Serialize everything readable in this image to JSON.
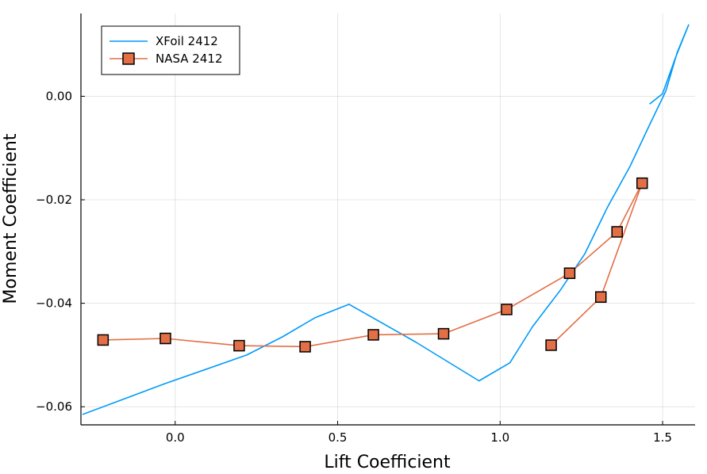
{
  "chart_data": {
    "type": "line",
    "xlabel": "Lift Coefficient",
    "ylabel": "Moment Coefficient",
    "xlim": [
      -0.29,
      1.6
    ],
    "ylim": [
      -0.0635,
      0.016
    ],
    "xticks": [
      0.0,
      0.5,
      1.0,
      1.5
    ],
    "xtick_labels": [
      "0.0",
      "0.5",
      "1.0",
      "1.5"
    ],
    "yticks": [
      0.0,
      -0.02,
      -0.04,
      -0.06
    ],
    "ytick_labels": [
      "0.00",
      "−0.02",
      "−0.04",
      "−0.06"
    ],
    "grid": true,
    "legend_position": "top-left",
    "series": [
      {
        "name": "XFoil 2412",
        "color": "#009af9",
        "marker": "none",
        "x": [
          -0.285,
          -0.03,
          0.22,
          0.33,
          0.43,
          0.535,
          0.74,
          0.935,
          1.03,
          1.1,
          1.185,
          1.26,
          1.33,
          1.4,
          1.46,
          1.51,
          1.545,
          1.58,
          1.54,
          1.5,
          1.46
        ],
        "y": [
          -0.0615,
          -0.0555,
          -0.05,
          -0.0465,
          -0.0428,
          -0.0402,
          -0.0475,
          -0.055,
          -0.0515,
          -0.0445,
          -0.0375,
          -0.0305,
          -0.0215,
          -0.0135,
          -0.0055,
          0.001,
          0.0085,
          0.0138,
          0.0075,
          0.0005,
          -0.0015
        ]
      },
      {
        "name": "NASA 2412",
        "color": "#e26f46",
        "marker": "square",
        "x": [
          -0.222,
          -0.03,
          0.197,
          0.4,
          0.61,
          0.826,
          1.02,
          1.214,
          1.36,
          1.437,
          1.31,
          1.157
        ],
        "y": [
          -0.0471,
          -0.0468,
          -0.0482,
          -0.0484,
          -0.0461,
          -0.0459,
          -0.0412,
          -0.0342,
          -0.0262,
          -0.0168,
          -0.0388,
          -0.0481
        ]
      }
    ]
  }
}
